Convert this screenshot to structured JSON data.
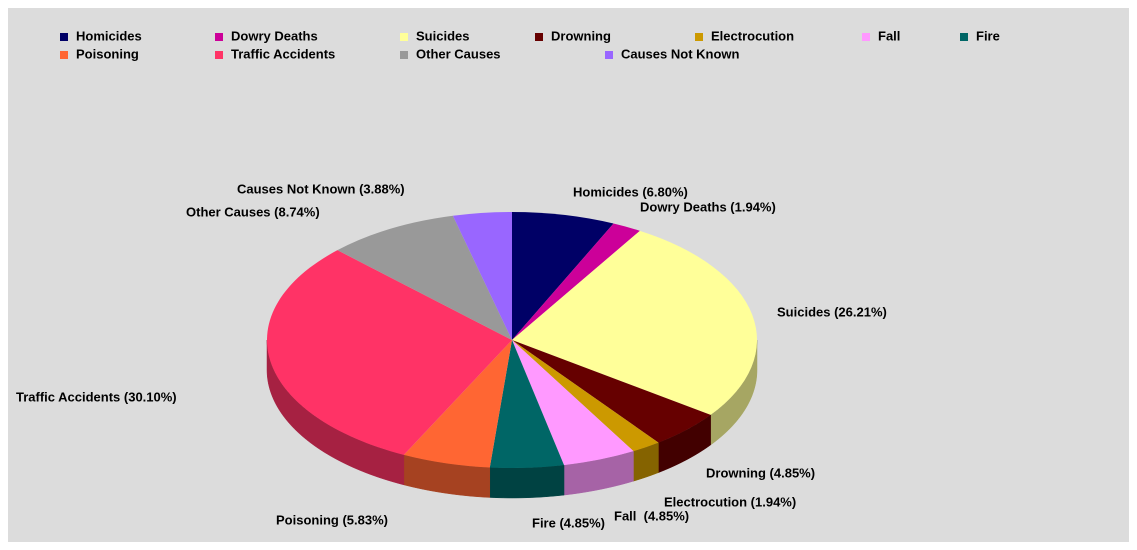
{
  "chart_data": {
    "type": "pie",
    "categories": [
      "Homicides",
      "Dowry Deaths",
      "Suicides",
      "Drowning",
      "Electrocution",
      "Fall",
      "Fire",
      "Poisoning",
      "Traffic Accidents",
      "Other Causes",
      "Causes Not Known"
    ],
    "values": [
      6.8,
      1.94,
      26.21,
      4.85,
      1.94,
      4.85,
      4.85,
      5.83,
      30.1,
      8.74,
      3.88
    ],
    "value_labels": [
      "Homicides (6.80%)",
      "Dowry Deaths (1.94%)",
      "Suicides (26.21%)",
      "Drowning (4.85%)",
      "Electrocution (1.94%)",
      "Fall  (4.85%)",
      "Fire (4.85%)",
      "Poisoning (5.83%)",
      "Traffic Accidents (30.10%)",
      "Other Causes (8.74%)",
      "Causes Not Known (3.88%)"
    ],
    "colors": [
      "#000066",
      "#cc0099",
      "#ffff99",
      "#660000",
      "#cc9900",
      "#ff99ff",
      "#006666",
      "#ff6633",
      "#ff3366",
      "#999999",
      "#9966ff"
    ],
    "legend": "top-left"
  }
}
